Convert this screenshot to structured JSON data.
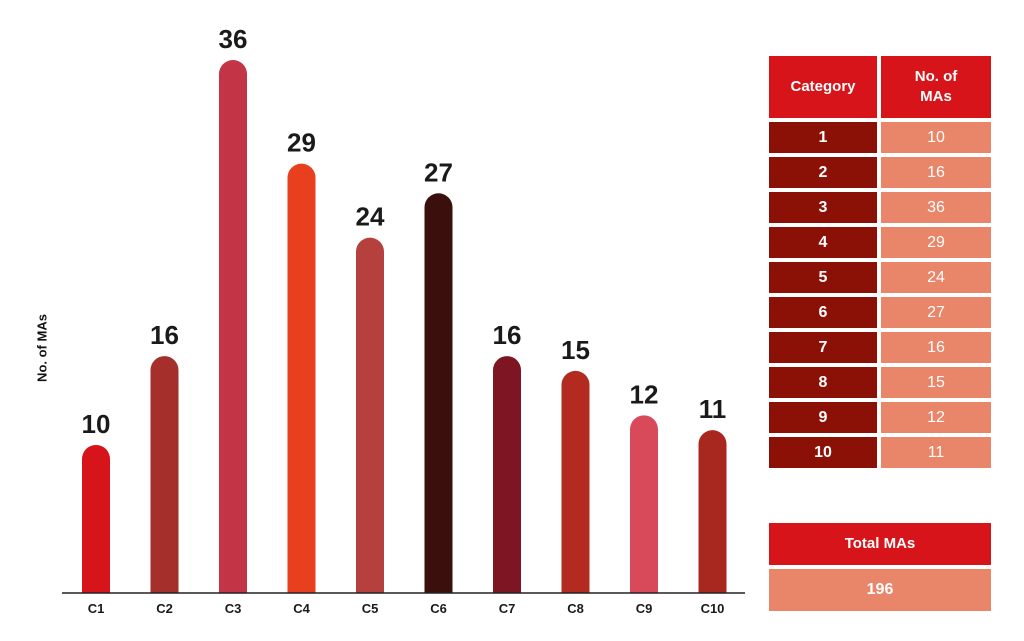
{
  "chart_data": {
    "type": "bar",
    "categories": [
      "C1",
      "C2",
      "C3",
      "C4",
      "C5",
      "C6",
      "C7",
      "C8",
      "C9",
      "C10"
    ],
    "values": [
      10,
      16,
      36,
      29,
      24,
      27,
      16,
      15,
      12,
      11
    ],
    "colors": [
      "#d7141a",
      "#a5302b",
      "#c23446",
      "#e8401f",
      "#b6403d",
      "#3a0f0c",
      "#7e1523",
      "#b22a20",
      "#d84a5a",
      "#a8271e"
    ],
    "title": "",
    "xlabel": "",
    "ylabel": "No. of MAs",
    "ylim": [
      0,
      36
    ],
    "grid": false
  },
  "table": {
    "headers": [
      "Category",
      "No. of MAs"
    ],
    "rows": [
      {
        "category": "1",
        "count": "10"
      },
      {
        "category": "2",
        "count": "16"
      },
      {
        "category": "3",
        "count": "36"
      },
      {
        "category": "4",
        "count": "29"
      },
      {
        "category": "5",
        "count": "24"
      },
      {
        "category": "6",
        "count": "27"
      },
      {
        "category": "7",
        "count": "16"
      },
      {
        "category": "8",
        "count": "15"
      },
      {
        "category": "9",
        "count": "12"
      },
      {
        "category": "10",
        "count": "11"
      }
    ]
  },
  "total": {
    "label": "Total MAs",
    "value": "196"
  }
}
